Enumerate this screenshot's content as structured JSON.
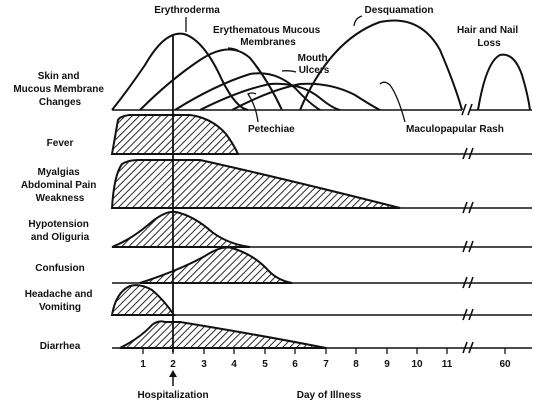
{
  "axis": {
    "title": "Day of Illness",
    "event_label": "Hospitalization",
    "ticks": [
      "1",
      "2",
      "3",
      "4",
      "5",
      "6",
      "7",
      "8",
      "9",
      "10",
      "11",
      "60"
    ]
  },
  "skin_annotations": [
    {
      "id": "erythroderma",
      "label": "Erythroderma"
    },
    {
      "id": "erythematous-mucous-membranes",
      "label": "Erythematous Mucous\nMembranes"
    },
    {
      "id": "mouth-ulcers",
      "label": "Mouth\nUlcers"
    },
    {
      "id": "desquamation",
      "label": "Desquamation"
    },
    {
      "id": "hair-and-nail-loss",
      "label": "Hair and Nail\nLoss"
    },
    {
      "id": "petechiae",
      "label": "Petechiae"
    },
    {
      "id": "maculopapular-rash",
      "label": "Maculopapular Rash"
    }
  ],
  "rows": [
    {
      "id": "skin",
      "label": "Skin and\nMucous Membrane\nChanges"
    },
    {
      "id": "fever",
      "label": "Fever"
    },
    {
      "id": "myalgias",
      "label": "Myalgias\nAbdominal Pain\nWeakness"
    },
    {
      "id": "hypotension",
      "label": "Hypotension\nand Oliguria"
    },
    {
      "id": "confusion",
      "label": "Confusion"
    },
    {
      "id": "headache",
      "label": "Headache and\nVomiting"
    },
    {
      "id": "diarrhea",
      "label": "Diarrhea"
    }
  ]
}
